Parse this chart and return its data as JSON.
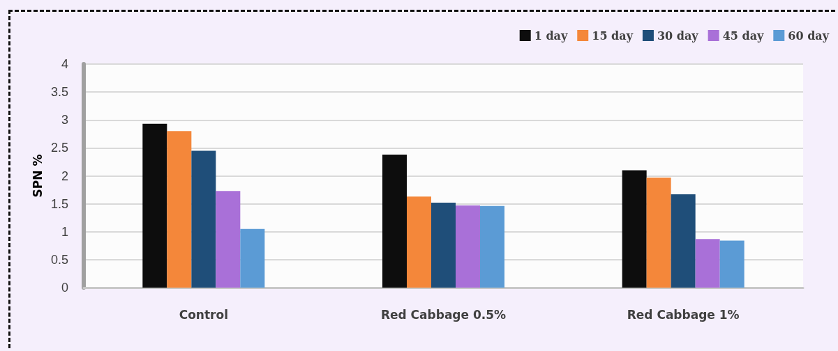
{
  "chart_data": {
    "type": "bar",
    "ylabel": "SPN %",
    "categories": [
      "Control",
      "Red Cabbage 0.5%",
      "Red Cabbage 1%"
    ],
    "series": [
      {
        "name": "1 day",
        "color": "#0d0d0d",
        "values": [
          2.93,
          2.38,
          2.1
        ]
      },
      {
        "name": "15 day",
        "color": "#f4873a",
        "values": [
          2.8,
          1.63,
          1.97
        ]
      },
      {
        "name": "30 day",
        "color": "#1f4e79",
        "values": [
          2.45,
          1.52,
          1.67
        ]
      },
      {
        "name": "45 day",
        "color": "#a970d8",
        "values": [
          1.73,
          1.47,
          0.87
        ]
      },
      {
        "name": "60 day",
        "color": "#5b9bd5",
        "values": [
          1.05,
          1.46,
          0.84
        ]
      }
    ],
    "ylim": [
      0,
      4
    ],
    "yticks": [
      0,
      0.5,
      1,
      1.5,
      2,
      2.5,
      3,
      3.5,
      4
    ],
    "grid": "y",
    "legend": "top right"
  }
}
